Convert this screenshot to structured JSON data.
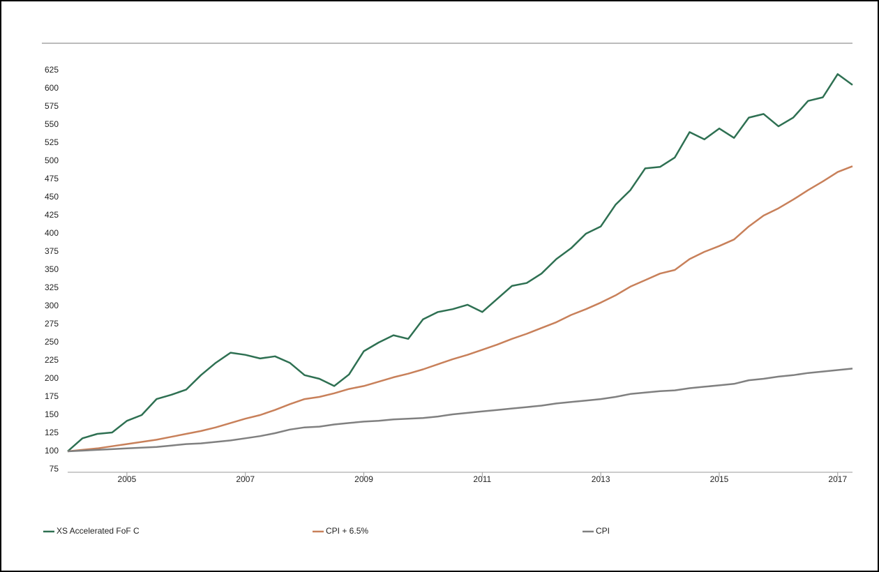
{
  "chart_data": {
    "type": "line",
    "x": [
      2004,
      2004.25,
      2004.5,
      2004.75,
      2005,
      2005.25,
      2005.5,
      2005.75,
      2006,
      2006.25,
      2006.5,
      2006.75,
      2007,
      2007.25,
      2007.5,
      2007.75,
      2008,
      2008.25,
      2008.5,
      2008.75,
      2009,
      2009.25,
      2009.5,
      2009.75,
      2010,
      2010.25,
      2010.5,
      2010.75,
      2011,
      2011.25,
      2011.5,
      2011.75,
      2012,
      2012.25,
      2012.5,
      2012.75,
      2013,
      2013.25,
      2013.5,
      2013.75,
      2014,
      2014.25,
      2014.5,
      2014.75,
      2015,
      2015.25,
      2015.5,
      2015.75,
      2016,
      2016.25,
      2016.5,
      2016.75,
      2017,
      2017.25
    ],
    "series": [
      {
        "name": "XS Accelerated FoF C",
        "color": "#2e7052",
        "values": [
          100,
          118,
          124,
          126,
          142,
          150,
          172,
          178,
          185,
          205,
          222,
          236,
          233,
          228,
          231,
          222,
          205,
          200,
          190,
          206,
          238,
          250,
          260,
          255,
          282,
          292,
          296,
          302,
          292,
          310,
          328,
          332,
          345,
          365,
          380,
          400,
          410,
          440,
          460,
          490,
          492,
          505,
          540,
          530,
          545,
          532,
          560,
          565,
          548,
          560,
          583,
          588,
          620,
          605
        ]
      },
      {
        "name": "CPI + 6.5%",
        "color": "#c8805a",
        "values": [
          100,
          102,
          104,
          107,
          110,
          113,
          116,
          120,
          124,
          128,
          133,
          139,
          145,
          150,
          157,
          165,
          172,
          175,
          180,
          186,
          190,
          196,
          202,
          207,
          213,
          220,
          227,
          233,
          240,
          247,
          255,
          262,
          270,
          278,
          288,
          296,
          305,
          315,
          327,
          336,
          345,
          350,
          365,
          375,
          383,
          392,
          410,
          425,
          435,
          447,
          460,
          472,
          485,
          493
        ]
      },
      {
        "name": "CPI",
        "color": "#808080",
        "values": [
          100,
          101,
          102,
          103,
          104,
          105,
          106,
          108,
          110,
          111,
          113,
          115,
          118,
          121,
          125,
          130,
          133,
          134,
          137,
          139,
          141,
          142,
          144,
          145,
          146,
          148,
          151,
          153,
          155,
          157,
          159,
          161,
          163,
          166,
          168,
          170,
          172,
          175,
          179,
          181,
          183,
          184,
          187,
          189,
          191,
          193,
          198,
          200,
          203,
          205,
          208,
          210,
          212,
          214
        ]
      }
    ],
    "xlim": [
      2004,
      2017.25
    ],
    "xticks": [
      2005,
      2007,
      2009,
      2011,
      2013,
      2015,
      2017
    ],
    "ylim": [
      75,
      625
    ],
    "yticks": [
      75,
      100,
      125,
      150,
      175,
      200,
      225,
      250,
      275,
      300,
      325,
      350,
      375,
      400,
      425,
      450,
      475,
      500,
      525,
      550,
      575,
      600,
      625
    ],
    "grid": false
  }
}
